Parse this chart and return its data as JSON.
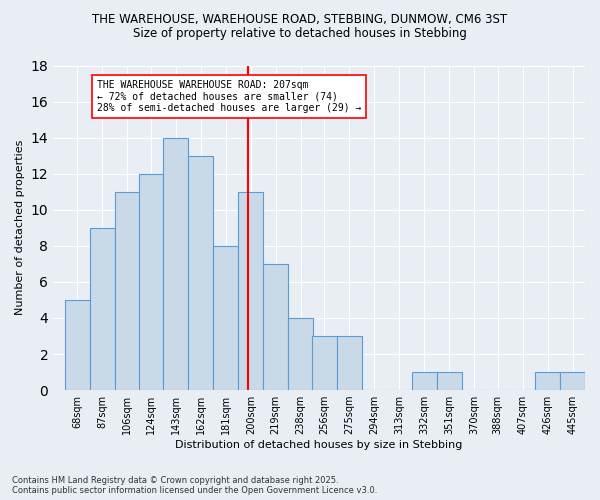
{
  "title1": "THE WAREHOUSE, WAREHOUSE ROAD, STEBBING, DUNMOW, CM6 3ST",
  "title2": "Size of property relative to detached houses in Stebbing",
  "xlabel": "Distribution of detached houses by size in Stebbing",
  "ylabel": "Number of detached properties",
  "bins_left": [
    68,
    87,
    106,
    124,
    143,
    162,
    181,
    200,
    219,
    238,
    256,
    275,
    294,
    313,
    332,
    351,
    370,
    388,
    407,
    426,
    445
  ],
  "bin_width": 19,
  "bin_labels": [
    "68sqm",
    "87sqm",
    "106sqm",
    "124sqm",
    "143sqm",
    "162sqm",
    "181sqm",
    "200sqm",
    "219sqm",
    "238sqm",
    "256sqm",
    "275sqm",
    "294sqm",
    "313sqm",
    "332sqm",
    "351sqm",
    "370sqm",
    "388sqm",
    "407sqm",
    "426sqm",
    "445sqm"
  ],
  "counts": [
    5,
    9,
    11,
    12,
    14,
    13,
    8,
    11,
    7,
    4,
    3,
    3,
    0,
    0,
    1,
    1,
    0,
    0,
    0,
    1,
    1
  ],
  "bar_color": "#c9d9e8",
  "bar_edge_color": "#5b9bd5",
  "vline_x": 207,
  "vline_color": "red",
  "annotation_text": "THE WAREHOUSE WAREHOUSE ROAD: 207sqm\n← 72% of detached houses are smaller (74)\n28% of semi-detached houses are larger (29) →",
  "annotation_box_color": "white",
  "annotation_border_color": "red",
  "xlim_left": 59,
  "xlim_right": 464,
  "ylim": [
    0,
    18
  ],
  "yticks": [
    0,
    2,
    4,
    6,
    8,
    10,
    12,
    14,
    16,
    18
  ],
  "bg_color": "#e8eef4",
  "footer1": "Contains HM Land Registry data © Crown copyright and database right 2025.",
  "footer2": "Contains public sector information licensed under the Open Government Licence v3.0."
}
